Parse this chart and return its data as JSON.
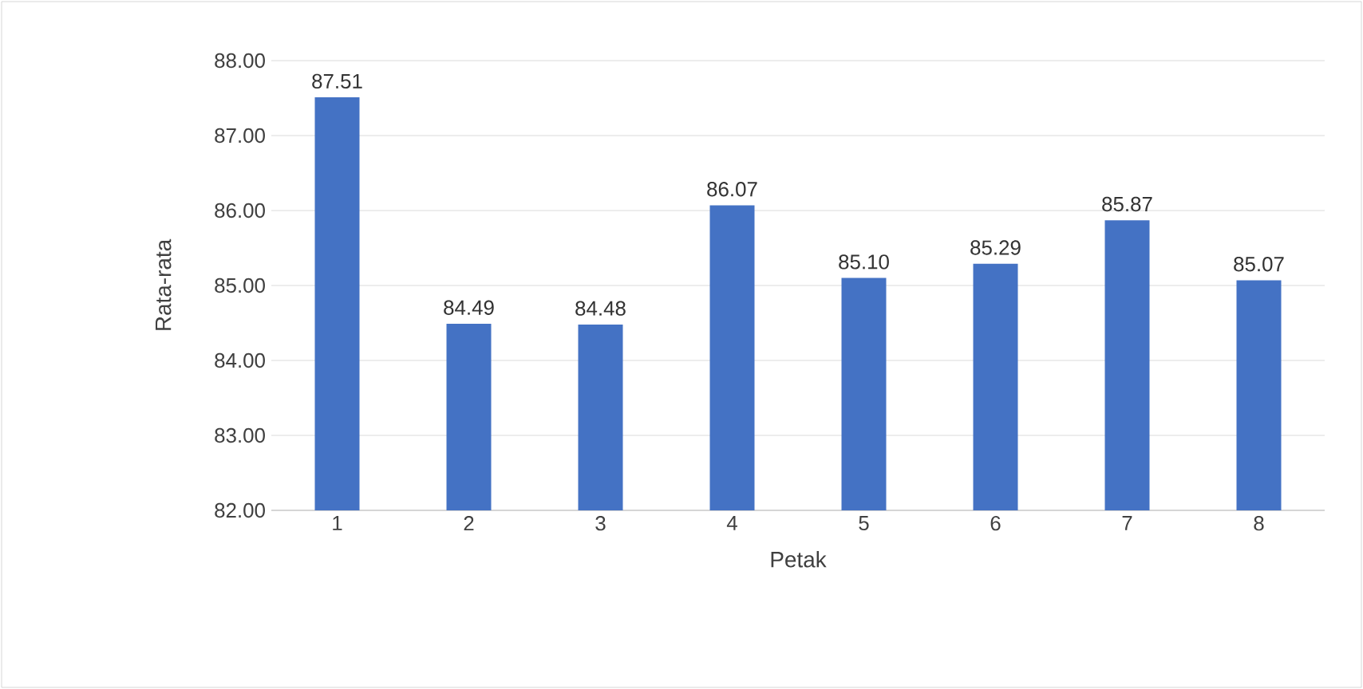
{
  "chart_data": {
    "type": "bar",
    "xlabel": "Petak",
    "ylabel": "Rata-rata",
    "categories": [
      "1",
      "2",
      "3",
      "4",
      "5",
      "6",
      "7",
      "8"
    ],
    "values": [
      87.51,
      84.49,
      84.48,
      86.07,
      85.1,
      85.29,
      85.87,
      85.07
    ],
    "color": "#4472c4",
    "ylim": [
      82,
      88
    ],
    "yticks": [
      {
        "value": 82,
        "label": "82.00"
      },
      {
        "value": 83,
        "label": "83.00"
      },
      {
        "value": 84,
        "label": "84.00"
      },
      {
        "value": 85,
        "label": "85.00"
      },
      {
        "value": 86,
        "label": "86.00"
      },
      {
        "value": 87,
        "label": "87.00"
      },
      {
        "value": 88,
        "label": "88.00"
      }
    ],
    "value_labels": [
      "87.51",
      "84.49",
      "84.48",
      "86.07",
      "85.10",
      "85.29",
      "85.87",
      "85.07"
    ],
    "grid": "y"
  }
}
